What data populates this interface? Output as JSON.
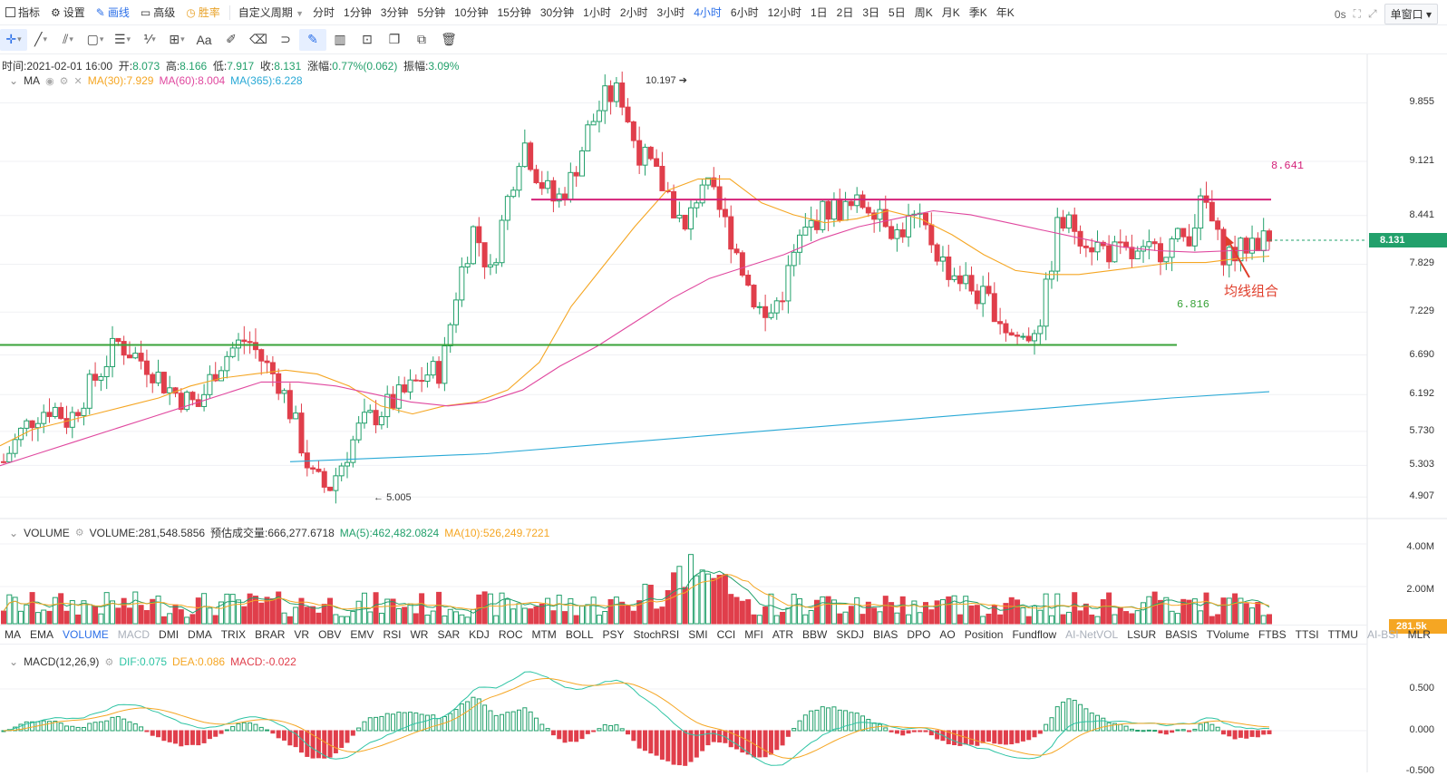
{
  "toolbar": {
    "items": [
      {
        "label": "指标",
        "icon": "chart-icon"
      },
      {
        "label": "设置",
        "icon": "gear-icon"
      },
      {
        "label": "画线",
        "icon": "pen-icon"
      },
      {
        "label": "高级",
        "icon": "briefcase-icon"
      },
      {
        "label": "胜率",
        "icon": "clock-icon"
      }
    ],
    "custom_period": "自定义周期",
    "periods": [
      "分时",
      "1分钟",
      "3分钟",
      "5分钟",
      "10分钟",
      "15分钟",
      "30分钟",
      "1小时",
      "2小时",
      "3小时",
      "4小时",
      "6小时",
      "12小时",
      "1日",
      "2日",
      "3日",
      "5日",
      "周K",
      "月K",
      "季K",
      "年K"
    ],
    "active_period": "4小时",
    "timer": "0s",
    "window_mode": "单窗口"
  },
  "draw_tools": [
    "crosshair",
    "trend-line",
    "parallel-line",
    "rectangle",
    "horizontal-lines",
    "fib-lines",
    "measure",
    "text",
    "brush",
    "eraser",
    "magnet",
    "pencil",
    "ruler",
    "lock",
    "copy",
    "screenshot",
    "trash"
  ],
  "draw_text_label": "Aa",
  "ohlc": {
    "time_label": "时间:",
    "time": "2021-02-01 16:00",
    "open_label": "开:",
    "open": "8.073",
    "high_label": "高:",
    "high": "8.166",
    "low_label": "低:",
    "low": "7.917",
    "close_label": "收:",
    "close": "8.131",
    "chg_label": "涨幅:",
    "chg": "0.77%(0.062)",
    "amp_label": "振幅:",
    "amp": "3.09%"
  },
  "ma_legend": {
    "name": "MA",
    "ma30": "MA(30):7.929",
    "ma60": "MA(60):8.004",
    "ma365": "MA(365):6.228"
  },
  "volume_legend": {
    "name": "VOLUME",
    "volume": "VOLUME:281,548.5856",
    "est": "预估成交量:666,277.6718",
    "ma5": "MA(5):462,482.0824",
    "ma10": "MA(10):526,249.7221"
  },
  "macd_legend": {
    "name": "MACD(12,26,9)",
    "dif": "DIF:0.075",
    "dea": "DEA:0.086",
    "macd": "MACD:-0.022"
  },
  "price_axis": {
    "ticks": [
      "9.855",
      "9.121",
      "8.441",
      "7.829",
      "7.229",
      "6.690",
      "6.192",
      "5.730",
      "5.303",
      "4.907"
    ],
    "current": "8.131"
  },
  "volume_axis": {
    "ticks": [
      "4.00M",
      "2.00M"
    ],
    "current": "281.5k"
  },
  "macd_axis": {
    "ticks": [
      "0.500",
      "0.000",
      "-0.500"
    ]
  },
  "annotations": {
    "high_label": "10.197",
    "low_label": "5.005",
    "resistance": "8.641",
    "support": "6.816",
    "note": "均线组合"
  },
  "indicators": [
    "MA",
    "EMA",
    "VOLUME",
    "MACD",
    "DMI",
    "DMA",
    "TRIX",
    "BRAR",
    "VR",
    "OBV",
    "EMV",
    "RSI",
    "WR",
    "SAR",
    "KDJ",
    "ROC",
    "MTM",
    "BOLL",
    "PSY",
    "StochRSI",
    "SMI",
    "CCI",
    "MFI",
    "ATR",
    "BBW",
    "SKDJ",
    "BIAS",
    "DPO",
    "AO",
    "Position",
    "Fundflow",
    "AI-NetVOL",
    "LSUR",
    "BASIS",
    "TVolume",
    "FTBS",
    "TTSI",
    "TTMU",
    "AI-BSI",
    "MLR"
  ],
  "indicators_active": [
    "VOLUME"
  ],
  "indicators_muted": [
    "MACD",
    "AI-NetVOL",
    "AI-BSI"
  ],
  "colors": {
    "up": "#22a06b",
    "down": "#e03e4b",
    "accent": "#2b6fe8",
    "ma30": "#f5a623",
    "ma60": "#e0489f",
    "ma365": "#29a9d6",
    "resistance": "#d4237a",
    "support": "#3aa33a"
  },
  "chart_data": {
    "type": "candlestick",
    "series_anchor_price": [
      5.35,
      5.7,
      5.95,
      6.05,
      5.85,
      6.2,
      6.5,
      6.85,
      6.7,
      6.55,
      6.3,
      6.15,
      6.05,
      6.5,
      6.75,
      6.9,
      6.6,
      6.35,
      5.8,
      5.15,
      5.0,
      5.4,
      5.8,
      5.95,
      6.1,
      6.25,
      6.45,
      6.5,
      7.6,
      8.3,
      7.7,
      8.6,
      9.4,
      8.9,
      8.6,
      8.9,
      9.5,
      9.9,
      10.0,
      9.3,
      9.0,
      8.7,
      8.2,
      8.9,
      8.55,
      8.1,
      7.5,
      7.1,
      7.5,
      8.1,
      8.4,
      8.55,
      8.5,
      8.6,
      8.55,
      8.2,
      8.4,
      8.2,
      7.8,
      7.65,
      7.45,
      7.3,
      6.95,
      6.9,
      7.2,
      8.35,
      8.3,
      8.1,
      8.0,
      7.95,
      7.9,
      8.0,
      8.1,
      8.2,
      8.65,
      8.0,
      7.95,
      8.15,
      8.131
    ],
    "ma30_anchor": [
      5.55,
      5.75,
      5.85,
      5.95,
      6.05,
      6.15,
      6.3,
      6.4,
      6.45,
      6.5,
      6.45,
      6.3,
      6.05,
      5.95,
      6.05,
      6.1,
      6.25,
      6.6,
      7.3,
      7.8,
      8.3,
      8.75,
      8.9,
      8.9,
      8.6,
      8.45,
      8.35,
      8.4,
      8.5,
      8.4,
      8.2,
      7.95,
      7.75,
      7.7,
      7.7,
      7.75,
      7.8,
      7.85,
      7.85,
      7.9,
      7.93
    ],
    "ma60_anchor": [
      5.3,
      5.45,
      5.6,
      5.75,
      5.9,
      6.05,
      6.2,
      6.35,
      6.35,
      6.3,
      6.2,
      6.1,
      6.05,
      6.1,
      6.25,
      6.55,
      6.8,
      7.1,
      7.4,
      7.65,
      7.8,
      7.95,
      8.15,
      8.3,
      8.4,
      8.5,
      8.45,
      8.35,
      8.25,
      8.15,
      8.05,
      8.0,
      7.98,
      8.0,
      8.004
    ],
    "ma365_anchor": [
      5.35,
      5.4,
      5.45,
      5.55,
      5.65,
      5.75,
      5.85,
      5.95,
      6.05,
      6.15,
      6.228
    ],
    "resistance": 8.641,
    "support": 6.816,
    "high": 10.197,
    "low": 5.005
  }
}
